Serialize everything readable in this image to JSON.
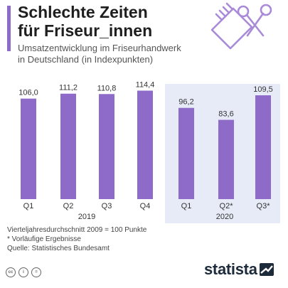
{
  "header": {
    "title_line1": "Schlechte Zeiten",
    "title_line2": "für Friseur_innen",
    "subtitle_line1": "Umsatzentwicklung im Friseurhandwerk",
    "subtitle_line2": "in Deutschland (in Indexpunkten)"
  },
  "colors": {
    "bar": "#8e6bc8",
    "accent": "#8e6bc8",
    "panel_2020": "#e6ebf7",
    "panel_2019": "#eef1f9"
  },
  "chart_data": {
    "type": "bar",
    "categories": [
      "Q1",
      "Q2",
      "Q3",
      "Q4",
      "Q1",
      "Q2*",
      "Q3*"
    ],
    "values": [
      106.0,
      111.2,
      110.8,
      114.4,
      96.2,
      83.6,
      109.5
    ],
    "value_labels": [
      "106,0",
      "111,2",
      "110,8",
      "114,4",
      "96,2",
      "83,6",
      "109,5"
    ],
    "groups": [
      {
        "label": "2019",
        "category_count": 4
      },
      {
        "label": "2020",
        "category_count": 3
      }
    ],
    "title": "Schlechte Zeiten für Friseur_innen",
    "ylabel": "",
    "xlabel": "",
    "ylim": [
      0,
      120
    ],
    "grid": false
  },
  "footnotes": {
    "line1": "Vierteljahresdurchschnitt 2009 = 100 Punkte",
    "line2": "* Vorläufige Ergebnisse",
    "line3": "Quelle: Statistisches Bundesamt"
  },
  "footer": {
    "license_icons": [
      "cc-icon",
      "by-icon",
      "nd-icon"
    ],
    "brand": "statista"
  }
}
